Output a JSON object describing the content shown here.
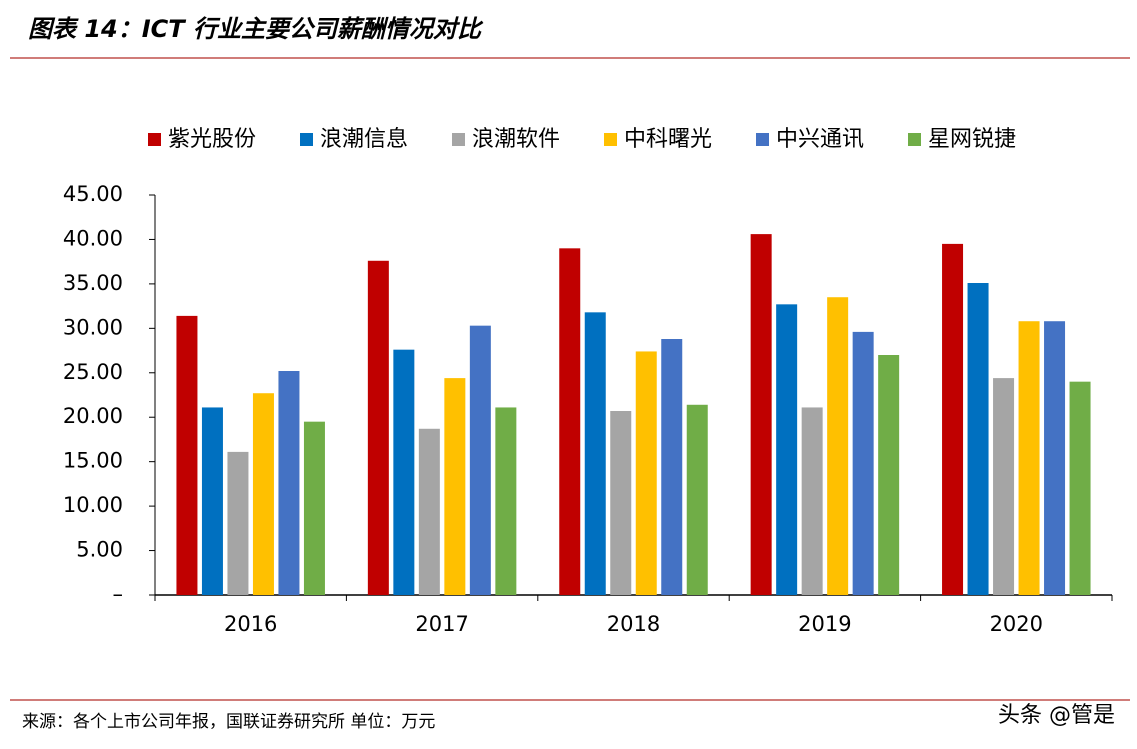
{
  "chart_data": {
    "type": "bar",
    "title": "图表 14：ICT 行业主要公司薪酬情况对比",
    "categories": [
      "2016",
      "2017",
      "2018",
      "2019",
      "2020"
    ],
    "series": [
      {
        "name": "紫光股份",
        "color": "#c00000",
        "values": [
          31.4,
          37.6,
          39.0,
          40.6,
          39.5
        ]
      },
      {
        "name": "浪潮信息",
        "color": "#0070c0",
        "values": [
          21.1,
          27.6,
          31.8,
          32.7,
          35.1
        ]
      },
      {
        "name": "浪潮软件",
        "color": "#a5a5a5",
        "values": [
          16.1,
          18.7,
          20.7,
          21.1,
          24.4
        ]
      },
      {
        "name": "中科曙光",
        "color": "#ffc000",
        "values": [
          22.7,
          24.4,
          27.4,
          33.5,
          30.8
        ]
      },
      {
        "name": "中兴通讯",
        "color": "#4472c4",
        "values": [
          25.2,
          30.3,
          28.8,
          29.6,
          30.8
        ]
      },
      {
        "name": "星网锐捷",
        "color": "#70ad47",
        "values": [
          19.5,
          21.1,
          21.4,
          27.0,
          24.0
        ]
      }
    ],
    "ylim": [
      0,
      45
    ],
    "yticks": [
      {
        "value": 0,
        "label": "–"
      },
      {
        "value": 5,
        "label": "5.00"
      },
      {
        "value": 10,
        "label": "10.00"
      },
      {
        "value": 15,
        "label": "15.00"
      },
      {
        "value": 20,
        "label": "20.00"
      },
      {
        "value": 25,
        "label": "25.00"
      },
      {
        "value": 30,
        "label": "30.00"
      },
      {
        "value": 35,
        "label": "35.00"
      },
      {
        "value": 40,
        "label": "40.00"
      },
      {
        "value": 45,
        "label": "45.00"
      }
    ],
    "grid": false,
    "legend": "top",
    "source": "来源：各个上市公司年报，国联证券研究所 单位：万元",
    "watermark": "头条 @管是"
  }
}
